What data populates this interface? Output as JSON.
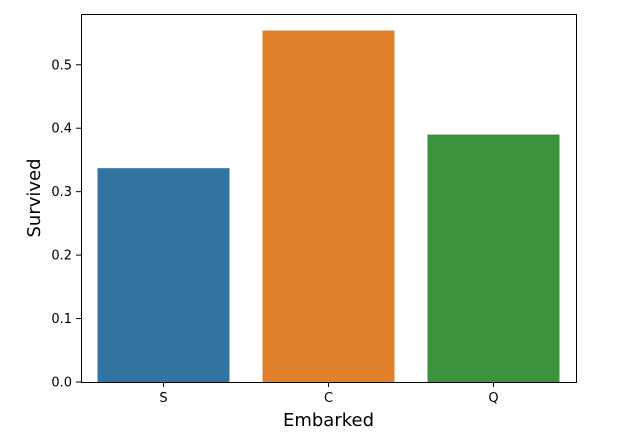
{
  "chart_data": {
    "type": "bar",
    "title": "",
    "xlabel": "Embarked",
    "ylabel": "Survived",
    "categories": [
      "S",
      "C",
      "Q"
    ],
    "values": [
      0.337,
      0.554,
      0.39
    ],
    "colors": [
      "#3274a1",
      "#e1812c",
      "#3a923a"
    ],
    "ylim": [
      0,
      0.58
    ],
    "yticks": [
      0.0,
      0.1,
      0.2,
      0.3,
      0.4,
      0.5
    ],
    "ytick_labels": [
      "0.0",
      "0.1",
      "0.2",
      "0.3",
      "0.4",
      "0.5"
    ],
    "grid": false,
    "legend": "none"
  }
}
